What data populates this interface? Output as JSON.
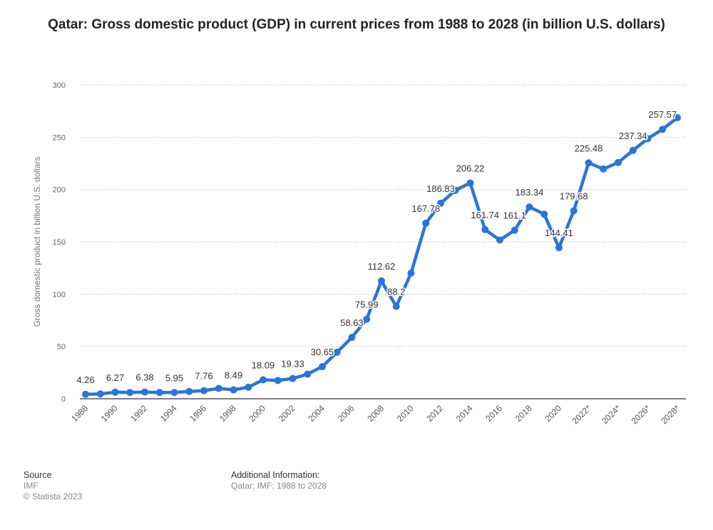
{
  "chart_data": {
    "type": "line",
    "title": "Qatar: Gross domestic product (GDP) in current prices from 1988 to 2028 (in billion U.S. dollars)",
    "xlabel": "",
    "ylabel": "Gross domestic product in billion U.S. dollars",
    "ylim": [
      0,
      300
    ],
    "yticks": [
      0,
      50,
      100,
      150,
      200,
      250,
      300
    ],
    "grid": true,
    "line_color": "#2a74dc",
    "x": [
      "1988",
      "1989",
      "1990",
      "1991",
      "1992",
      "1993",
      "1994",
      "1995",
      "1996",
      "1997",
      "1998",
      "1999",
      "2000",
      "2001",
      "2002",
      "2003",
      "2004",
      "2005",
      "2006",
      "2007",
      "2008",
      "2009",
      "2010",
      "2011",
      "2012",
      "2013",
      "2014",
      "2015",
      "2016",
      "2017",
      "2018",
      "2019",
      "2020",
      "2021",
      "2022*",
      "2023*",
      "2024*",
      "2025*",
      "2026*",
      "2027*",
      "2028*"
    ],
    "xtick_labels": [
      "1988",
      "1990",
      "1992",
      "1994",
      "1996",
      "1998",
      "2000",
      "2002",
      "2004",
      "2006",
      "2008",
      "2010",
      "2012",
      "2014",
      "2016",
      "2018",
      "2020",
      "2022*",
      "2024*",
      "2026*",
      "2028*"
    ],
    "values": [
      4.26,
      4.6,
      6.27,
      6.0,
      6.38,
      6.0,
      5.95,
      7.0,
      7.76,
      9.9,
      8.49,
      11.0,
      18.09,
      17.5,
      19.33,
      23.5,
      30.65,
      44.5,
      58.63,
      75.99,
      112.62,
      88.2,
      120.0,
      167.78,
      186.83,
      199.3,
      206.22,
      161.74,
      151.7,
      161.1,
      183.34,
      176.4,
      144.41,
      179.68,
      225.48,
      219.6,
      225.8,
      237.34,
      248.6,
      257.57,
      268.6
    ],
    "data_labels": {
      "1988": "4.26",
      "1990": "6.27",
      "1992": "6.38",
      "1994": "5.95",
      "1996": "7.76",
      "1998": "8.49",
      "2000": "18.09",
      "2002": "19.33",
      "2004": "30.65",
      "2006": "58.63",
      "2007": "75.99",
      "2008": "112.62",
      "2009": "88.2",
      "2011": "167.78",
      "2012": "186.83",
      "2014": "206.22",
      "2015": "161.74",
      "2017": "161.1",
      "2018": "183.34",
      "2020": "144.41",
      "2021": "179.68",
      "2022*": "225.48",
      "2025*": "237.34",
      "2027*": "257.57"
    }
  },
  "footer": {
    "source_label": "Source",
    "source": "IMF",
    "copyright": "© Statista 2023",
    "additional_label": "Additional Information:",
    "additional": "Qatar; IMF; 1988 to 2028"
  }
}
